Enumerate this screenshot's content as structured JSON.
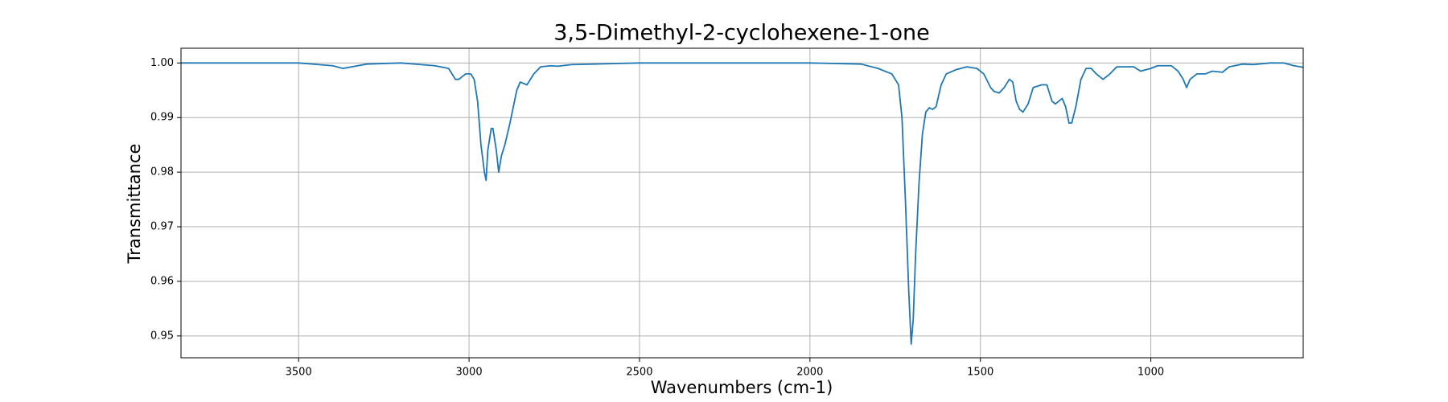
{
  "chart_data": {
    "type": "line",
    "title": "3,5-Dimethyl-2-cyclohexene-1-one",
    "xlabel": "Wavenumbers (cm-1)",
    "ylabel": "Transmittance",
    "grid": true,
    "xlim": [
      3845,
      553
    ],
    "ylim": [
      0.946,
      1.0027
    ],
    "xticks": [
      3500,
      3000,
      2500,
      2000,
      1500,
      1000
    ],
    "yticks": [
      0.95,
      0.96,
      0.97,
      0.98,
      0.99,
      {
        "value": 1,
        "label": "1.00"
      }
    ],
    "series": [
      {
        "color": "#1f77b4",
        "x": [
          3845,
          3700,
          3500,
          3400,
          3370,
          3300,
          3200,
          3100,
          3060,
          3040,
          3030,
          3010,
          2995,
          2985,
          2975,
          2965,
          2955,
          2950,
          2945,
          2935,
          2930,
          2920,
          2913,
          2905,
          2895,
          2880,
          2860,
          2850,
          2830,
          2810,
          2790,
          2760,
          2740,
          2700,
          2500,
          2000,
          1850,
          1800,
          1760,
          1740,
          1730,
          1720,
          1710,
          1703,
          1697,
          1690,
          1680,
          1670,
          1660,
          1650,
          1640,
          1630,
          1615,
          1600,
          1570,
          1540,
          1510,
          1490,
          1470,
          1460,
          1445,
          1430,
          1415,
          1405,
          1395,
          1385,
          1375,
          1360,
          1345,
          1320,
          1305,
          1290,
          1280,
          1260,
          1250,
          1240,
          1232,
          1220,
          1205,
          1190,
          1175,
          1160,
          1140,
          1120,
          1100,
          1080,
          1050,
          1030,
          1000,
          980,
          940,
          920,
          905,
          895,
          885,
          865,
          840,
          820,
          790,
          770,
          730,
          700,
          650,
          610,
          580,
          553
        ],
        "values": [
          1.0,
          1.0,
          1.0,
          0.9995,
          0.999,
          0.9998,
          1.0,
          0.9995,
          0.999,
          0.997,
          0.997,
          0.998,
          0.998,
          0.997,
          0.993,
          0.985,
          0.98,
          0.9785,
          0.984,
          0.988,
          0.988,
          0.984,
          0.98,
          0.983,
          0.985,
          0.989,
          0.995,
          0.9965,
          0.996,
          0.998,
          0.9993,
          0.9995,
          0.9994,
          0.9997,
          1.0,
          1.0,
          0.9998,
          0.999,
          0.998,
          0.996,
          0.99,
          0.975,
          0.958,
          0.9485,
          0.953,
          0.965,
          0.978,
          0.987,
          0.991,
          0.9918,
          0.9915,
          0.992,
          0.996,
          0.998,
          0.9988,
          0.9993,
          0.999,
          0.998,
          0.9955,
          0.9948,
          0.9945,
          0.9955,
          0.997,
          0.9965,
          0.993,
          0.9915,
          0.991,
          0.9925,
          0.9955,
          0.996,
          0.996,
          0.993,
          0.9925,
          0.9935,
          0.992,
          0.989,
          0.989,
          0.992,
          0.997,
          0.999,
          0.999,
          0.998,
          0.997,
          0.998,
          0.9993,
          0.9993,
          0.9993,
          0.9985,
          0.999,
          0.9995,
          0.9995,
          0.9985,
          0.997,
          0.9955,
          0.997,
          0.998,
          0.998,
          0.9985,
          0.9983,
          0.9993,
          0.9998,
          0.9997,
          1.0,
          1.0,
          0.9995,
          0.9992
        ]
      }
    ]
  }
}
